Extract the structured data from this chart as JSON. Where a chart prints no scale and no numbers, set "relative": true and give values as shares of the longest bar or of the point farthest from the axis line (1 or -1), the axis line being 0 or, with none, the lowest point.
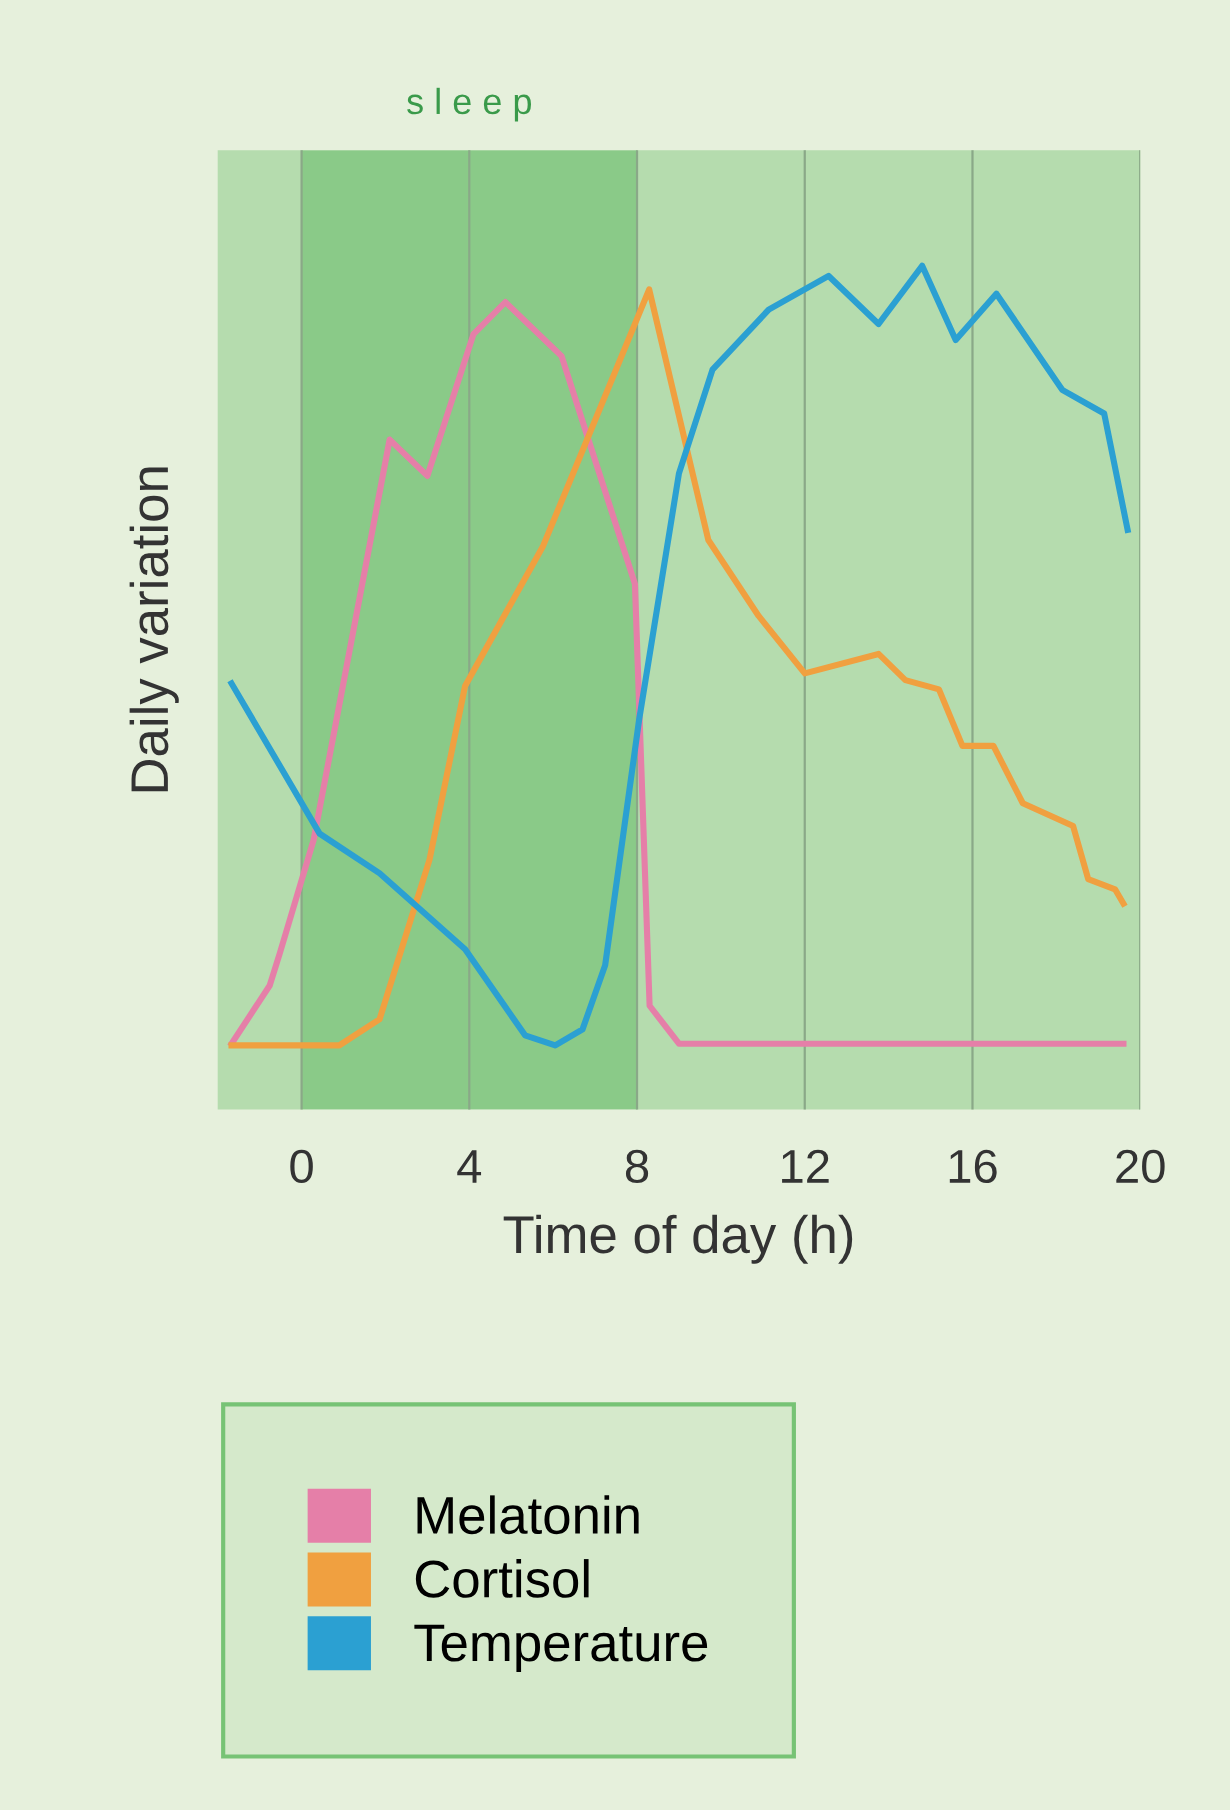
{
  "chart_data": {
    "type": "line",
    "relative": true,
    "xlabel": "Time of day (h)",
    "ylabel": "Daily variation",
    "xlim": [
      -2,
      20
    ],
    "xticks": [
      0,
      4,
      8,
      12,
      16,
      20
    ],
    "grid": "x",
    "legend": "bottom",
    "line_style": "solid",
    "marker": "none",
    "bands": [
      {
        "axis": "x",
        "from": 0,
        "to": 8,
        "label": "s l e e p",
        "color": "#66bb6a"
      }
    ],
    "series": [
      {
        "name": "Melatonin",
        "color": "#e57fa8",
        "x": [
          -1.67,
          -0.76,
          -0.52,
          0.29,
          2.1,
          3.0,
          4.1,
          4.86,
          6.2,
          7.95,
          8.3,
          9.0,
          19.6
        ],
        "values": [
          0.078,
          0.147,
          0.185,
          0.32,
          0.794,
          0.751,
          0.919,
          0.957,
          0.893,
          0.623,
          0.123,
          0.078,
          0.078
        ]
      },
      {
        "name": "Cortisol",
        "color": "#f0a040",
        "x": [
          -1.67,
          0.9,
          1.86,
          3.05,
          3.9,
          5.76,
          8.29,
          9.7,
          10.9,
          12.0,
          13.76,
          14.4,
          15.2,
          15.76,
          16.5,
          17.2,
          18.4,
          18.76,
          19.4,
          19.6
        ],
        "values": [
          0.076,
          0.076,
          0.107,
          0.296,
          0.502,
          0.668,
          0.972,
          0.675,
          0.585,
          0.517,
          0.54,
          0.509,
          0.498,
          0.431,
          0.431,
          0.363,
          0.336,
          0.273,
          0.261,
          0.244
        ]
      },
      {
        "name": "Temperature",
        "color": "#2ba0d2",
        "x": [
          -1.67,
          0.43,
          1.86,
          3.9,
          5.33,
          6.05,
          6.7,
          7.24,
          8.05,
          9.0,
          9.8,
          11.14,
          12.57,
          13.76,
          14.8,
          15.6,
          16.57,
          18.14,
          19.14,
          19.7
        ],
        "values": [
          0.505,
          0.327,
          0.28,
          0.19,
          0.088,
          0.076,
          0.095,
          0.171,
          0.462,
          0.754,
          0.877,
          0.948,
          0.988,
          0.931,
          1.0,
          0.912,
          0.967,
          0.853,
          0.825,
          0.687
        ]
      }
    ]
  }
}
